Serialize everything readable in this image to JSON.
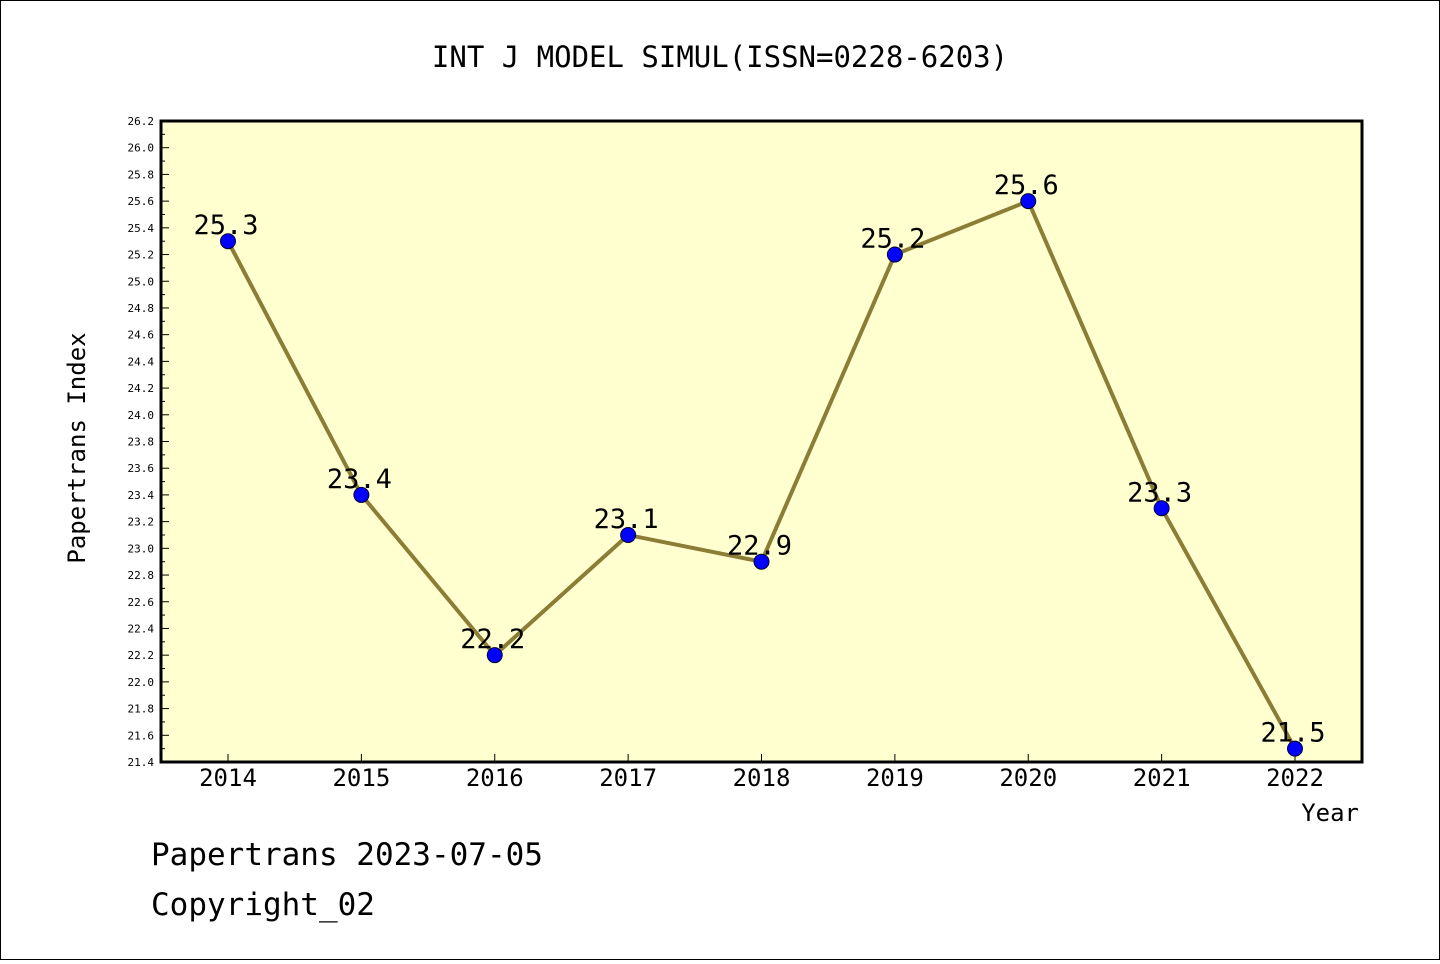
{
  "chart_data": {
    "type": "line",
    "title": "INT J MODEL SIMUL(ISSN=0228-6203)",
    "xlabel": "Year",
    "ylabel": "Papertrans Index",
    "categories": [
      "2014",
      "2015",
      "2016",
      "2017",
      "2018",
      "2019",
      "2020",
      "2021",
      "2022"
    ],
    "values": [
      25.3,
      23.4,
      22.2,
      23.1,
      22.9,
      25.2,
      25.6,
      23.3,
      21.5
    ],
    "data_labels": [
      "25.3",
      "23.4",
      "22.2",
      "23.1",
      "22.9",
      "25.2",
      "25.6",
      "23.3",
      "21.5"
    ],
    "ylim": [
      21.4,
      26.2
    ],
    "yticks": [
      "21.4",
      "21.6",
      "21.8",
      "22.0",
      "22.2",
      "22.4",
      "22.6",
      "22.8",
      "23.0",
      "23.2",
      "23.4",
      "23.6",
      "23.8",
      "24.0",
      "24.2",
      "24.4",
      "24.6",
      "24.8",
      "25.0",
      "25.2",
      "25.4",
      "25.6",
      "25.8",
      "26.0",
      "26.2"
    ],
    "grid": false,
    "colors": {
      "plot_background": "#ffffd0",
      "line": "#8b7d35",
      "marker": "#0000ff"
    }
  },
  "footer": {
    "line1": "Papertrans 2023-07-05",
    "line2": "Copyright_02"
  }
}
